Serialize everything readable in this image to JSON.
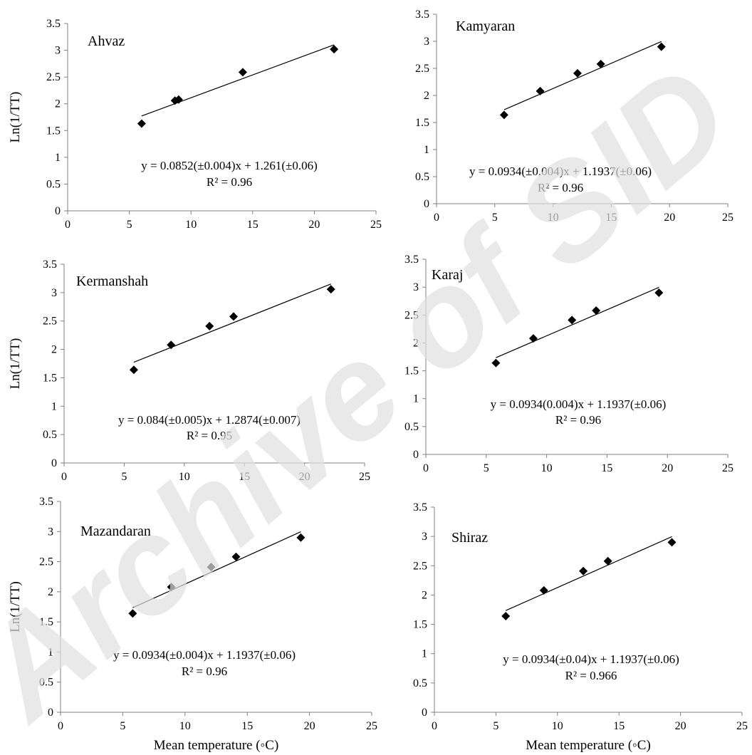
{
  "watermark": "Archive of SID",
  "colors": {
    "marker": "#000000",
    "line": "#000000",
    "axis": "#808080",
    "watermark": "#e0e0e0"
  },
  "chart_data": [
    {
      "type": "scatter",
      "title": "Ahvaz",
      "ylabel": "Ln(1/TT)",
      "xlabel": "",
      "xlim": [
        0,
        25
      ],
      "ylim": [
        0,
        3.5
      ],
      "xticks": [
        "0",
        "5",
        "10",
        "15",
        "20",
        "25"
      ],
      "yticks": [
        "0",
        "0.5",
        "1",
        "1.5",
        "2",
        "2.5",
        "3",
        "3.5"
      ],
      "grid": false,
      "points": [
        [
          6.0,
          1.63
        ],
        [
          8.7,
          2.06
        ],
        [
          9.0,
          2.08
        ],
        [
          14.2,
          2.59
        ],
        [
          21.6,
          3.02
        ]
      ],
      "trendline": {
        "slope": 0.0852,
        "intercept": 1.261,
        "x_range": [
          6.0,
          21.6
        ]
      },
      "equation": "y = 0.0852(±0.004)x + 1.261(±0.06)",
      "r2": "R² = 0.96"
    },
    {
      "type": "scatter",
      "title": "Kamyaran",
      "ylabel": "",
      "xlabel": "",
      "xlim": [
        0,
        25
      ],
      "ylim": [
        0,
        3.5
      ],
      "xticks": [
        "0",
        "5",
        "10",
        "15",
        "20",
        "25"
      ],
      "yticks": [
        "0",
        "0.5",
        "1",
        "1.5",
        "2",
        "2.5",
        "3",
        "3.5"
      ],
      "grid": false,
      "points": [
        [
          5.8,
          1.64
        ],
        [
          8.9,
          2.08
        ],
        [
          12.1,
          2.41
        ],
        [
          14.1,
          2.58
        ],
        [
          19.3,
          2.9
        ]
      ],
      "trendline": {
        "slope": 0.0934,
        "intercept": 1.1937,
        "x_range": [
          5.8,
          19.3
        ]
      },
      "equation": "y = 0.0934(±0.004)x + 1.1937(±0.06)",
      "r2": "R² = 0.96"
    },
    {
      "type": "scatter",
      "title": "Kermanshah",
      "ylabel": "Ln(1/TT)",
      "xlabel": "",
      "xlim": [
        0,
        25
      ],
      "ylim": [
        0,
        3.5
      ],
      "xticks": [
        "0",
        "5",
        "10",
        "15",
        "20",
        "25"
      ],
      "yticks": [
        "0",
        "0.5",
        "1",
        "1.5",
        "2",
        "2.5",
        "3",
        "3.5"
      ],
      "grid": false,
      "points": [
        [
          5.8,
          1.64
        ],
        [
          8.9,
          2.08
        ],
        [
          12.1,
          2.41
        ],
        [
          14.1,
          2.58
        ],
        [
          22.2,
          3.06
        ]
      ],
      "trendline": {
        "slope": 0.084,
        "intercept": 1.2874,
        "x_range": [
          5.8,
          22.2
        ]
      },
      "equation": "y = 0.084(±0.005)x + 1.2874(±0.007)",
      "r2": "R² = 0.95"
    },
    {
      "type": "scatter",
      "title": "Karaj",
      "ylabel": "",
      "xlabel": "",
      "xlim": [
        0,
        25
      ],
      "ylim": [
        0,
        3.5
      ],
      "xticks": [
        "0",
        "5",
        "10",
        "15",
        "20",
        "25"
      ],
      "yticks": [
        "0",
        "0.5",
        "1",
        "1.5",
        "2",
        "2.5",
        "3",
        "3.5"
      ],
      "grid": false,
      "points": [
        [
          5.8,
          1.64
        ],
        [
          8.9,
          2.08
        ],
        [
          12.1,
          2.41
        ],
        [
          14.1,
          2.58
        ],
        [
          19.3,
          2.9
        ]
      ],
      "trendline": {
        "slope": 0.0934,
        "intercept": 1.1937,
        "x_range": [
          5.8,
          19.3
        ]
      },
      "equation": "y = 0.0934(0.004)x + 1.1937(±0.06)",
      "r2": "R² = 0.96"
    },
    {
      "type": "scatter",
      "title": "Mazandaran",
      "ylabel": "Ln(1/TT)",
      "xlabel": "Mean temperature (◦C)",
      "xlim": [
        0,
        25
      ],
      "ylim": [
        0,
        3.5
      ],
      "xticks": [
        "0",
        "5",
        "10",
        "15",
        "20",
        "25"
      ],
      "yticks": [
        "0",
        "0.5",
        "1",
        "1.5",
        "2",
        "2.5",
        "3",
        "3.5"
      ],
      "grid": false,
      "points": [
        [
          5.8,
          1.64
        ],
        [
          8.9,
          2.08
        ],
        [
          12.1,
          2.41
        ],
        [
          14.1,
          2.58
        ],
        [
          19.3,
          2.9
        ]
      ],
      "trendline": {
        "slope": 0.0934,
        "intercept": 1.1937,
        "x_range": [
          5.8,
          19.3
        ]
      },
      "equation": "y = 0.0934(±0.004)x + 1.1937(±0.06)",
      "r2": "R² = 0.96"
    },
    {
      "type": "scatter",
      "title": "Shiraz",
      "ylabel": "",
      "xlabel": "Mean temperature (◦C)",
      "xlim": [
        0,
        25
      ],
      "ylim": [
        0,
        3.5
      ],
      "xticks": [
        "0",
        "5",
        "10",
        "15",
        "20",
        "25"
      ],
      "yticks": [
        "0",
        "0.5",
        "1",
        "1.5",
        "2",
        "2.5",
        "3",
        "3.5"
      ],
      "grid": false,
      "points": [
        [
          5.8,
          1.64
        ],
        [
          8.9,
          2.08
        ],
        [
          12.1,
          2.41
        ],
        [
          14.1,
          2.58
        ],
        [
          19.3,
          2.9
        ]
      ],
      "trendline": {
        "slope": 0.0934,
        "intercept": 1.1937,
        "x_range": [
          5.8,
          19.3
        ]
      },
      "equation": "y = 0.0934(±0.04)x + 1.1937(±0.06)",
      "r2": "R² = 0.966"
    }
  ]
}
